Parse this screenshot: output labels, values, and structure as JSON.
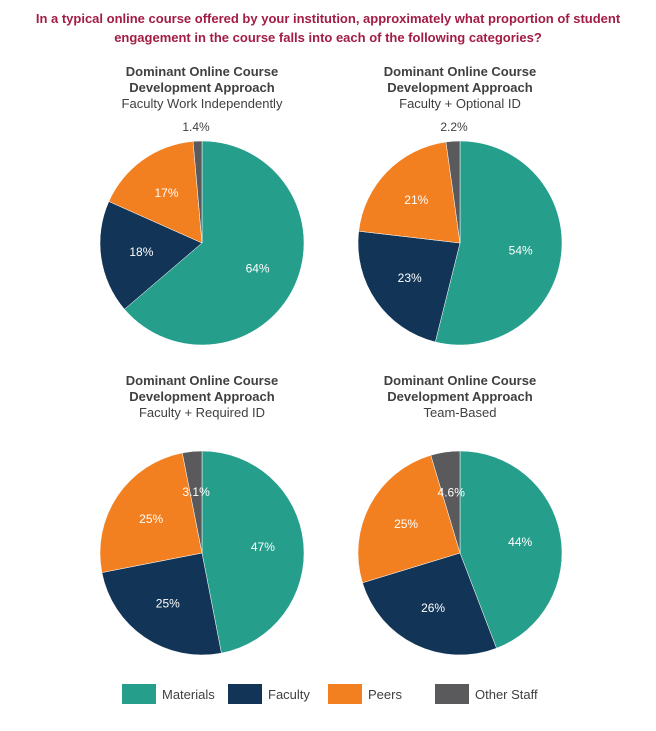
{
  "title": {
    "line1": "In a typical online course offered by your institution, approximately what proportion of student",
    "line2": "engagement in the course falls into each of the following categories?"
  },
  "colors": {
    "Materials": "#269e8c",
    "Faculty": "#123456",
    "Peers": "#f28021",
    "Other Staff": "#5a5a5c",
    "title": "#a31c44"
  },
  "legend": [
    "Materials",
    "Faculty",
    "Peers",
    "Other Staff"
  ],
  "chart_data": [
    {
      "type": "pie",
      "title": "Dominant Online Course Development Approach",
      "title_lines": [
        "Dominant Online Course",
        "Development Approach"
      ],
      "subtitle": "Faculty Work Independently",
      "categories": [
        "Materials",
        "Faculty",
        "Peers",
        "Other Staff"
      ],
      "values": [
        64,
        18,
        17,
        1.4
      ],
      "labels": [
        "64%",
        "18%",
        "17%",
        "1.4%"
      ]
    },
    {
      "type": "pie",
      "title": "Dominant Online Course Development Approach",
      "title_lines": [
        "Dominant Online Course",
        "Development Approach"
      ],
      "subtitle": "Faculty + Optional ID",
      "categories": [
        "Materials",
        "Faculty",
        "Peers",
        "Other Staff"
      ],
      "values": [
        54,
        23,
        21,
        2.2
      ],
      "labels": [
        "54%",
        "23%",
        "21%",
        "2.2%"
      ]
    },
    {
      "type": "pie",
      "title": "Dominant Online Course Development Approach",
      "title_lines": [
        "Dominant Online Course",
        "Development Approach"
      ],
      "subtitle": "Faculty + Required ID",
      "categories": [
        "Materials",
        "Faculty",
        "Peers",
        "Other Staff"
      ],
      "values": [
        47,
        25,
        25,
        3.1
      ],
      "labels": [
        "47%",
        "25%",
        "25%",
        "3.1%"
      ]
    },
    {
      "type": "pie",
      "title": "Dominant Online Course Development Approach",
      "title_lines": [
        "Dominant Online Course",
        "Development Approach"
      ],
      "subtitle": "Team-Based",
      "categories": [
        "Materials",
        "Faculty",
        "Peers",
        "Other Staff"
      ],
      "values": [
        44,
        26,
        25,
        4.6
      ],
      "labels": [
        "44%",
        "26%",
        "25%",
        "4.6%"
      ]
    }
  ]
}
